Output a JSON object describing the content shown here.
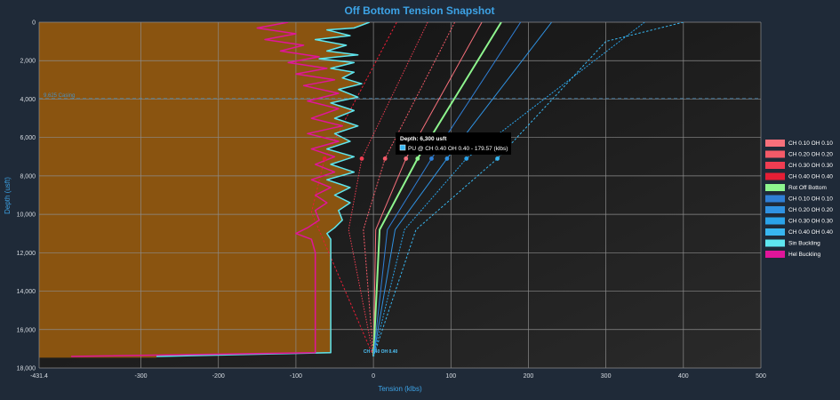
{
  "chart_data": {
    "type": "line",
    "title": "Off Bottom Tension Snapshot",
    "xlabel": "Tension (klbs)",
    "ylabel": "Depth (usft)",
    "xlim": [
      -431.4,
      500
    ],
    "ylim": [
      0,
      18000
    ],
    "y_inverted": true,
    "grid": true,
    "x_ticks": [
      -431.4,
      -300,
      -200,
      -100,
      0,
      100,
      200,
      300,
      400,
      500
    ],
    "x_tick_labels": [
      "-431.4",
      "-300",
      "-200",
      "-100",
      "0",
      "100",
      "200",
      "300",
      "400",
      "500"
    ],
    "y_ticks": [
      0,
      2000,
      4000,
      6000,
      8000,
      10000,
      12000,
      14000,
      16000,
      18000
    ],
    "y_tick_labels": [
      "0",
      "2,000",
      "4,000",
      "6,000",
      "8,000",
      "10,000",
      "12,000",
      "14,000",
      "16,000",
      "18,000"
    ],
    "legend_position": "right",
    "annotations": {
      "casing_depth": 3975,
      "casing_label": "9.625 Casing",
      "end_label": "CH 0.40 OH 0.40",
      "end_point": {
        "x": 0,
        "y": 17400
      }
    },
    "tooltip": {
      "title": "Depth: 6,300 usft",
      "text": "PU @ CH 0.40 OH 0.40 - 179.57 (klbs)"
    },
    "series": [
      {
        "name": "CH 0.10 OH 0.10",
        "color": "#f7707b",
        "dash": "",
        "width": 1,
        "points": [
          [
            140,
            0
          ],
          [
            42,
            7100
          ],
          [
            3,
            10800
          ],
          [
            0,
            17400
          ]
        ]
      },
      {
        "name": "CH 0.20 OH 0.20",
        "color": "#f45a68",
        "dash": "2,1.5",
        "width": 1,
        "points": [
          [
            105,
            0
          ],
          [
            15,
            7100
          ],
          [
            -13,
            10800
          ],
          [
            0,
            17400
          ]
        ]
      },
      {
        "name": "CH 0.30 OH 0.30",
        "color": "#ef3d52",
        "dash": "1.5,1.5",
        "width": 1,
        "points": [
          [
            70,
            0
          ],
          [
            -15,
            7100
          ],
          [
            -32,
            10800
          ],
          [
            0,
            17400
          ]
        ]
      },
      {
        "name": "CH 0.40 OH 0.40",
        "color": "#e51e35",
        "dash": "2.5,2",
        "width": 1,
        "points": [
          [
            30,
            0
          ],
          [
            -63,
            7100
          ],
          [
            -80,
            9900
          ],
          [
            0,
            17400
          ]
        ]
      },
      {
        "name": "Rot Off Bottom",
        "color": "#8ef58e",
        "dash": "",
        "width": 2,
        "points": [
          [
            165,
            0
          ],
          [
            57,
            7100
          ],
          [
            8,
            10800
          ],
          [
            0,
            17400
          ]
        ]
      },
      {
        "name": "CH 0.10 OH 0.10",
        "color": "#2f7fd6",
        "dash": "",
        "width": 1,
        "points": [
          [
            190,
            0
          ],
          [
            75,
            7100
          ],
          [
            18,
            10800
          ],
          [
            0,
            17400
          ]
        ]
      },
      {
        "name": "CH 0.20 OH 0.20",
        "color": "#2f92e2",
        "dash": "",
        "width": 1,
        "points": [
          [
            230,
            0
          ],
          [
            95,
            7100
          ],
          [
            28,
            10800
          ],
          [
            0,
            17400
          ]
        ]
      },
      {
        "name": "CH 0.30 OH 0.30",
        "color": "#2aa3e9",
        "dash": "2,1.5",
        "width": 1,
        "points": [
          [
            350,
            0
          ],
          [
            120,
            7100
          ],
          [
            40,
            10800
          ],
          [
            0,
            17400
          ]
        ]
      },
      {
        "name": "CH 0.40 OH 0.40",
        "color": "#38b6f0",
        "dash": "2.5,2",
        "width": 1,
        "points": [
          [
            400,
            0
          ],
          [
            300,
            1000
          ],
          [
            160,
            7100
          ],
          [
            55,
            10800
          ],
          [
            0,
            17400
          ]
        ]
      },
      {
        "name": "Sin Buckling",
        "color": "#5ee6ef",
        "dash": "",
        "width": 1.5,
        "points": [
          [
            -5,
            0
          ],
          [
            -25,
            300
          ],
          [
            -60,
            400
          ],
          [
            -30,
            700
          ],
          [
            -75,
            900
          ],
          [
            -35,
            1200
          ],
          [
            -60,
            1500
          ],
          [
            -20,
            1700
          ],
          [
            -70,
            1900
          ],
          [
            -25,
            2100
          ],
          [
            -55,
            2400
          ],
          [
            -25,
            2600
          ],
          [
            -40,
            2900
          ],
          [
            -15,
            3200
          ],
          [
            -45,
            3500
          ],
          [
            -20,
            3900
          ],
          [
            -55,
            4200
          ],
          [
            -25,
            4600
          ],
          [
            -50,
            5000
          ],
          [
            -20,
            5400
          ],
          [
            -50,
            5800
          ],
          [
            -30,
            6200
          ],
          [
            -60,
            6600
          ],
          [
            -25,
            7000
          ],
          [
            -55,
            7400
          ],
          [
            -25,
            7800
          ],
          [
            -60,
            8200
          ],
          [
            -30,
            8600
          ],
          [
            -50,
            9000
          ],
          [
            -30,
            9400
          ],
          [
            -45,
            9800
          ],
          [
            -40,
            10300
          ],
          [
            -50,
            10700
          ],
          [
            -60,
            11000
          ],
          [
            -55,
            11300
          ],
          [
            -55,
            12000
          ],
          [
            -55,
            13000
          ],
          [
            -55,
            14000
          ],
          [
            -55,
            15000
          ],
          [
            -55,
            16000
          ],
          [
            -55,
            17200
          ],
          [
            -280,
            17400
          ]
        ]
      },
      {
        "name": "Hel Buckling",
        "color": "#e0159a",
        "dash": "",
        "width": 1.5,
        "points": [
          [
            -110,
            0
          ],
          [
            -150,
            300
          ],
          [
            -100,
            600
          ],
          [
            -140,
            900
          ],
          [
            -90,
            1200
          ],
          [
            -120,
            1500
          ],
          [
            -70,
            1800
          ],
          [
            -110,
            2100
          ],
          [
            -60,
            2400
          ],
          [
            -100,
            2700
          ],
          [
            -50,
            3000
          ],
          [
            -90,
            3300
          ],
          [
            -45,
            3700
          ],
          [
            -85,
            4100
          ],
          [
            -45,
            4500
          ],
          [
            -80,
            5000
          ],
          [
            -40,
            5400
          ],
          [
            -85,
            5800
          ],
          [
            -45,
            6200
          ],
          [
            -80,
            6600
          ],
          [
            -50,
            7000
          ],
          [
            -75,
            7400
          ],
          [
            -50,
            7800
          ],
          [
            -80,
            8200
          ],
          [
            -55,
            8600
          ],
          [
            -75,
            9000
          ],
          [
            -60,
            9400
          ],
          [
            -75,
            9800
          ],
          [
            -70,
            10300
          ],
          [
            -85,
            10700
          ],
          [
            -100,
            11000
          ],
          [
            -80,
            11300
          ],
          [
            -75,
            12000
          ],
          [
            -75,
            13000
          ],
          [
            -75,
            14000
          ],
          [
            -75,
            15000
          ],
          [
            -75,
            16000
          ],
          [
            -75,
            17200
          ],
          [
            -390,
            17400
          ]
        ]
      }
    ]
  }
}
